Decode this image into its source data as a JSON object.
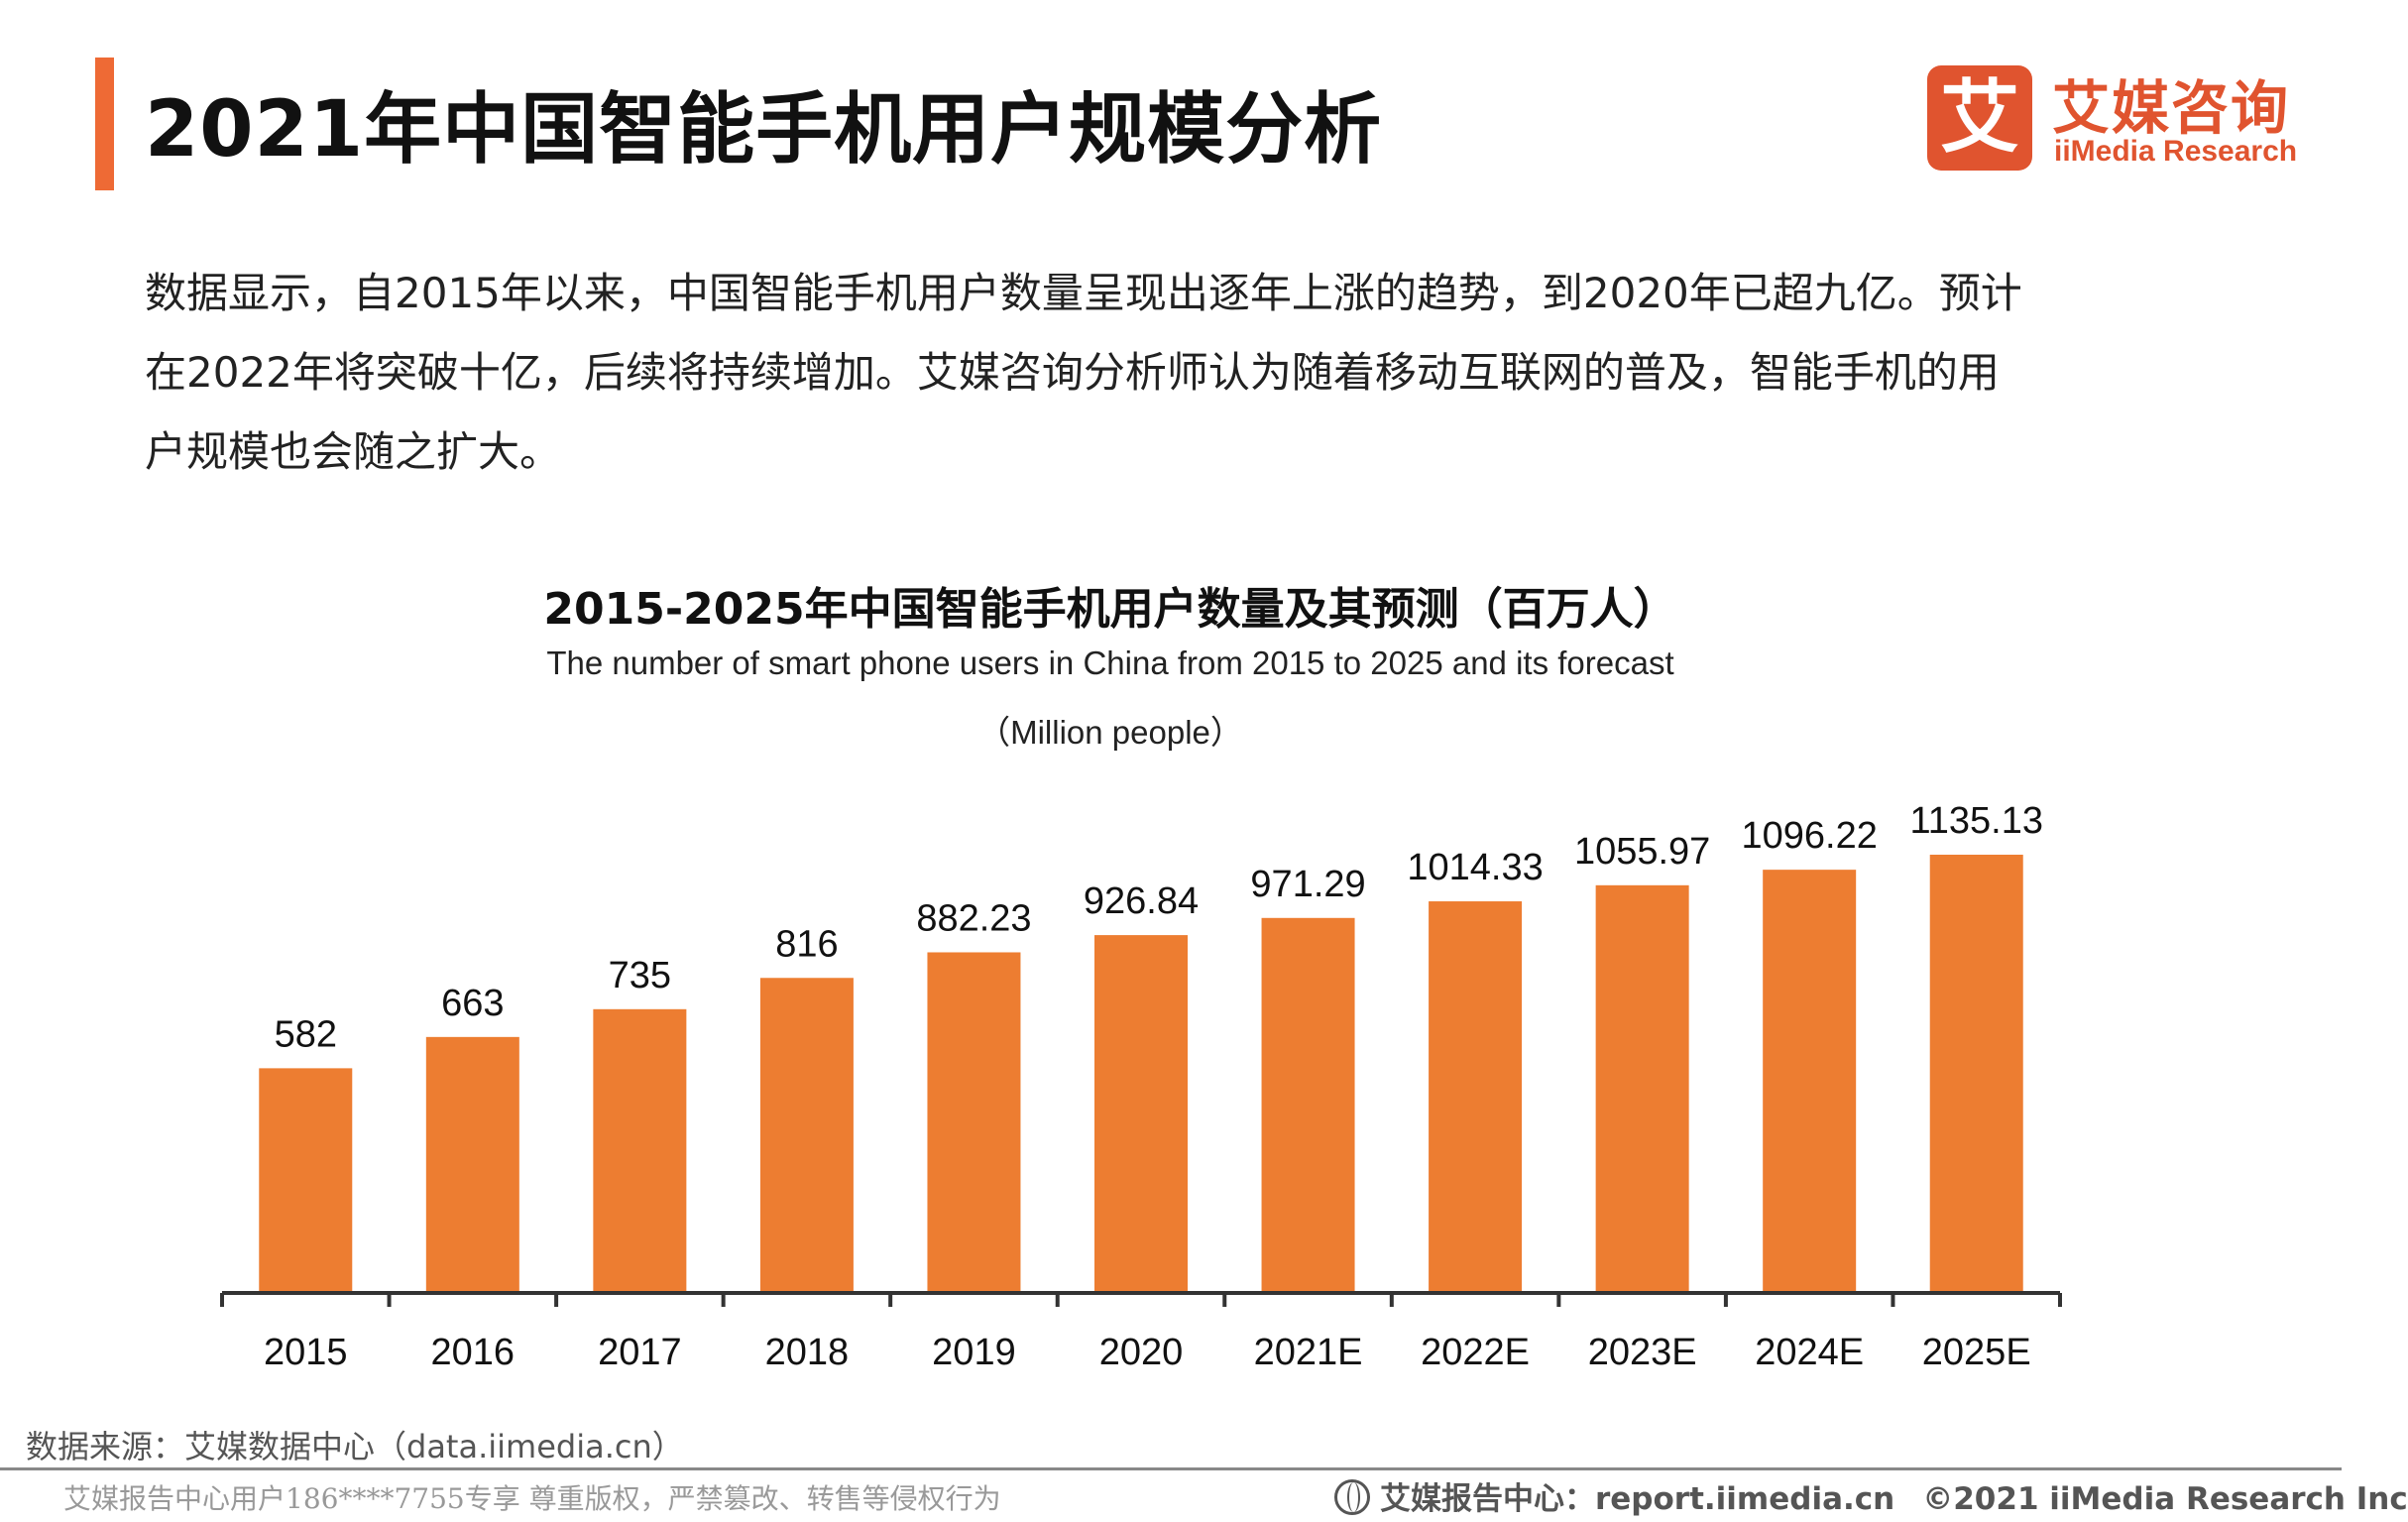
{
  "header": {
    "title": "2021年中国智能手机用户规模分析",
    "logo_mark": "艾",
    "logo_cn": "艾媒咨询",
    "logo_en": "iiMedia Research"
  },
  "description": {
    "lines": [
      "数据显示，自2015年以来，中国智能手机用户数量呈现出逐年上涨的趋势，到2020年已超九亿。预计",
      "在2022年将突破十亿，后续将持续增加。艾媒咨询分析师认为随着移动互联网的普及，智能手机的用",
      "户规模也会随之扩大。"
    ]
  },
  "chart_data": {
    "type": "bar",
    "title": "2015-2025年中国智能手机用户数量及其预测（百万人）",
    "subtitle": "The number of smart phone users in China from 2015 to 2025 and its forecast",
    "unit_label": "（Million people）",
    "categories": [
      "2015",
      "2016",
      "2017",
      "2018",
      "2019",
      "2020",
      "2021E",
      "2022E",
      "2023E",
      "2024E",
      "2025E"
    ],
    "values": [
      582,
      663,
      735,
      816,
      882.23,
      926.84,
      971.29,
      1014.33,
      1055.97,
      1096.22,
      1135.13
    ],
    "value_labels": [
      "582",
      "663",
      "735",
      "816",
      "882.23",
      "926.84",
      "971.29",
      "1014.33",
      "1055.97",
      "1096.22",
      "1135.13"
    ],
    "ylim": [
      0,
      1150
    ],
    "grid": false,
    "legend": "none",
    "bar_color": "#ed7d31"
  },
  "footer": {
    "source": "数据来源：艾媒数据中心（data.iimedia.cn）",
    "left": "艾媒报告中心用户186****7755专享 尊重版权，严禁篡改、转售等侵权行为",
    "right": "艾媒报告中心：report.iimedia.cn",
    "copyright": "©2021  iiMedia Research  Inc"
  }
}
